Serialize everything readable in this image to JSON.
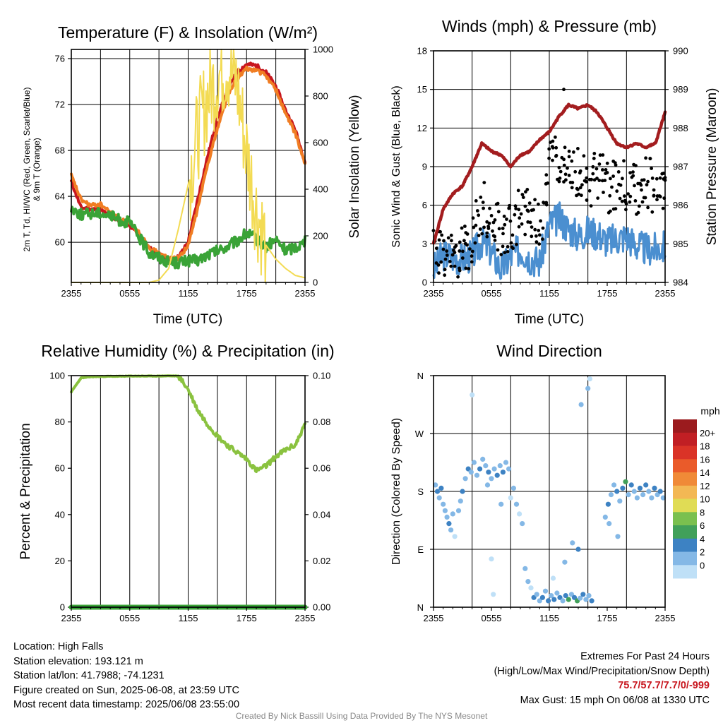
{
  "x_ticks": [
    "2355",
    "0555",
    "1155",
    "1755",
    "2355"
  ],
  "panels": {
    "temperature": {
      "title": "Temperature (F) & Insolation (W/m²)",
      "xlabel": "Time (UTC)",
      "ylabel_line1": "2m T, Td, HI/WC (Red, Green, Scarlet/Blue)",
      "ylabel_line2": "& 9m T (Orange)",
      "ylabel_right": "Solar Insolation (Yellow)",
      "left_ticks": [
        "60",
        "64",
        "68",
        "72",
        "76"
      ],
      "right_ticks": [
        "0",
        "200",
        "400",
        "600",
        "800",
        "1000"
      ]
    },
    "winds": {
      "title": "Winds (mph) & Pressure (mb)",
      "xlabel": "Time (UTC)",
      "ylabel_left": "Sonic Wind & Gust (Blue, Black)",
      "ylabel_right": "Station Pressure (Maroon)",
      "left_ticks": [
        "0",
        "3",
        "6",
        "9",
        "12",
        "15",
        "18"
      ],
      "right_ticks": [
        "984",
        "985",
        "986",
        "987",
        "988",
        "989",
        "990"
      ]
    },
    "humidity": {
      "title": "Relative Humidity (%) & Precipitation (in)",
      "ylabel_left": "Percent & Precipitation",
      "left_ticks": [
        "0",
        "20",
        "40",
        "60",
        "80",
        "100"
      ],
      "right_ticks": [
        "0.00",
        "0.02",
        "0.04",
        "0.06",
        "0.08",
        "0.10"
      ]
    },
    "direction": {
      "title": "Wind Direction",
      "ylabel_left": "Direction (Colored By Speed)",
      "dir_ticks": [
        "N",
        "E",
        "S",
        "W",
        "N"
      ],
      "legend_title": "mph",
      "legend_labels": [
        "20+",
        "18",
        "16",
        "14",
        "12",
        "10",
        "8",
        "6",
        "4",
        "2",
        "0"
      ],
      "legend_colors": [
        "#9b1b1e",
        "#c11f24",
        "#da3327",
        "#ea5b2a",
        "#f08a37",
        "#f3b854",
        "#e0dc55",
        "#7ac04f",
        "#41a05a",
        "#3d82c3",
        "#84b8e6",
        "#bfe0f7"
      ]
    }
  },
  "chart_data": [
    {
      "type": "line",
      "title": "Temperature (F) & Insolation (W/m²)",
      "xlabel": "Time (UTC)",
      "x_hours": [
        0,
        1,
        2,
        3,
        4,
        5,
        6,
        7,
        8,
        9,
        10,
        11,
        12,
        13,
        14,
        15,
        16,
        17,
        18,
        19,
        20,
        21,
        22,
        23,
        24
      ],
      "ylim": [
        56.5,
        76.8
      ],
      "y2lim": [
        0,
        1000
      ],
      "series": [
        {
          "name": "2m T",
          "color": "#c8161e",
          "axis": "left",
          "values": [
            65.3,
            63.0,
            62.9,
            62.8,
            62.3,
            61.8,
            61.5,
            60.6,
            59.5,
            58.9,
            58.5,
            58.7,
            60.0,
            63.8,
            67.5,
            70.8,
            73.2,
            74.8,
            75.5,
            75.4,
            74.8,
            73.6,
            71.5,
            69.8,
            67.0
          ]
        },
        {
          "name": "9m T",
          "color": "#f07d23",
          "axis": "left",
          "values": [
            65.8,
            63.7,
            63.2,
            63.3,
            62.6,
            62.0,
            61.6,
            60.8,
            59.6,
            59.0,
            58.6,
            58.6,
            59.7,
            63.0,
            66.8,
            69.9,
            72.6,
            74.3,
            75.1,
            75.0,
            74.5,
            73.3,
            71.2,
            69.5,
            66.8
          ]
        },
        {
          "name": "Td",
          "color": "#3aa337",
          "axis": "left",
          "values": [
            63.0,
            62.4,
            62.5,
            62.6,
            62.3,
            61.9,
            61.7,
            60.4,
            59.1,
            58.7,
            58.3,
            58.2,
            58.4,
            58.4,
            58.9,
            59.2,
            59.6,
            60.1,
            60.8,
            60.3,
            59.6,
            60.2,
            59.3,
            59.6,
            60.0
          ]
        },
        {
          "name": "Solar Insolation",
          "color": "#f3db53",
          "axis": "right",
          "values": [
            0,
            0,
            0,
            0,
            0,
            0,
            0,
            0,
            0,
            10,
            60,
            230,
            420,
            640,
            800,
            880,
            940,
            850,
            560,
            310,
            160,
            100,
            60,
            30,
            20
          ]
        }
      ]
    },
    {
      "type": "line",
      "title": "Winds (mph) & Pressure (mb)",
      "xlabel": "Time (UTC)",
      "x_hours": [
        0,
        1,
        2,
        3,
        4,
        5,
        6,
        7,
        8,
        9,
        10,
        11,
        12,
        13,
        14,
        15,
        16,
        17,
        18,
        19,
        20,
        21,
        22,
        23,
        24
      ],
      "ylim": [
        0,
        18
      ],
      "y2lim": [
        984,
        990
      ],
      "series": [
        {
          "name": "Sonic Wind",
          "color": "#4b8fd0",
          "axis": "left",
          "values": [
            1.0,
            2.2,
            2.0,
            1.8,
            2.1,
            3.2,
            2.4,
            1.0,
            2.0,
            2.6,
            1.9,
            1.6,
            4.5,
            5.0,
            4.2,
            3.6,
            4.0,
            3.8,
            3.2,
            3.4,
            3.6,
            2.9,
            2.6,
            2.6,
            2.8
          ]
        },
        {
          "name": "Gust",
          "color": "#000000",
          "axis": "left",
          "values": [
            2.8,
            2.6,
            2.4,
            2.6,
            3.4,
            6.2,
            4.5,
            3.6,
            4.2,
            5.7,
            4.7,
            3.8,
            9.0,
            9.5,
            8.5,
            8.3,
            7.6,
            8.2,
            7.4,
            7.8,
            7.2,
            7.4,
            7.8,
            7.1,
            7.0
          ]
        },
        {
          "name": "Station Pressure",
          "color": "#a31d1f",
          "axis": "right",
          "values": [
            985.0,
            985.9,
            986.3,
            986.5,
            987.0,
            987.6,
            987.4,
            987.3,
            987.0,
            987.3,
            987.4,
            987.7,
            987.9,
            988.3,
            988.6,
            988.5,
            988.6,
            988.4,
            988.0,
            987.6,
            987.5,
            987.6,
            987.5,
            987.6,
            988.4
          ]
        }
      ]
    },
    {
      "type": "line",
      "title": "Relative Humidity (%) & Precipitation (in)",
      "x_hours": [
        0,
        1,
        2,
        3,
        4,
        5,
        6,
        7,
        8,
        9,
        10,
        11,
        12,
        13,
        14,
        15,
        16,
        17,
        18,
        19,
        20,
        21,
        22,
        23,
        24
      ],
      "ylim": [
        0,
        100
      ],
      "y2lim": [
        0,
        0.1
      ],
      "series": [
        {
          "name": "Relative Humidity",
          "color": "#8ac23f",
          "axis": "left",
          "values": [
            93,
            99,
            99.5,
            99.6,
            99.7,
            99.7,
            99.8,
            99.8,
            99.8,
            99.8,
            99.9,
            99.8,
            94,
            85,
            79,
            74,
            70,
            67,
            64,
            59,
            61,
            65,
            68,
            70,
            79
          ]
        },
        {
          "name": "Precipitation",
          "color": "#1a6f34",
          "axis": "right",
          "values": [
            0,
            0,
            0,
            0,
            0,
            0,
            0,
            0,
            0,
            0,
            0,
            0,
            0,
            0,
            0,
            0,
            0,
            0,
            0,
            0,
            0,
            0,
            0,
            0,
            0
          ]
        }
      ]
    },
    {
      "type": "scatter",
      "title": "Wind Direction",
      "ylabel": "Direction (Colored By Speed)",
      "ylim": [
        0,
        360
      ],
      "points": [
        [
          0.2,
          190,
          3
        ],
        [
          0.4,
          180,
          4
        ],
        [
          0.6,
          170,
          2
        ],
        [
          0.8,
          185,
          4
        ],
        [
          1.0,
          160,
          3
        ],
        [
          1.2,
          150,
          2
        ],
        [
          1.4,
          140,
          3
        ],
        [
          1.6,
          130,
          4
        ],
        [
          1.8,
          120,
          3
        ],
        [
          2.0,
          145,
          2
        ],
        [
          2.2,
          110,
          1
        ],
        [
          2.6,
          150,
          3
        ],
        [
          2.8,
          165,
          2
        ],
        [
          3.0,
          180,
          4
        ],
        [
          3.3,
          200,
          3
        ],
        [
          3.6,
          215,
          4
        ],
        [
          3.9,
          210,
          3
        ],
        [
          4.2,
          225,
          2
        ],
        [
          4.5,
          205,
          3
        ],
        [
          4.8,
          215,
          4
        ],
        [
          5.1,
          230,
          3
        ],
        [
          5.4,
          220,
          2
        ],
        [
          5.7,
          210,
          4
        ],
        [
          6.0,
          200,
          3
        ],
        [
          6.3,
          215,
          2
        ],
        [
          6.6,
          205,
          4
        ],
        [
          6.9,
          220,
          3
        ],
        [
          7.2,
          210,
          4
        ],
        [
          7.5,
          225,
          2
        ],
        [
          7.8,
          215,
          3
        ],
        [
          4.0,
          330,
          1
        ],
        [
          5.6,
          190,
          2
        ],
        [
          6.0,
          75,
          1
        ],
        [
          6.2,
          20,
          1
        ],
        [
          7.0,
          160,
          2
        ],
        [
          8.0,
          170,
          1
        ],
        [
          8.3,
          185,
          3
        ],
        [
          8.6,
          160,
          2
        ],
        [
          8.9,
          145,
          1
        ],
        [
          9.2,
          130,
          2
        ],
        [
          9.5,
          60,
          2
        ],
        [
          9.8,
          40,
          3
        ],
        [
          10.1,
          30,
          1
        ],
        [
          10.4,
          15,
          4
        ],
        [
          10.7,
          20,
          3
        ],
        [
          11.0,
          10,
          2
        ],
        [
          11.3,
          15,
          4
        ],
        [
          11.6,
          25,
          3
        ],
        [
          11.9,
          10,
          5
        ],
        [
          12.2,
          18,
          3
        ],
        [
          12.5,
          12,
          4
        ],
        [
          12.8,
          22,
          2
        ],
        [
          13.1,
          15,
          5
        ],
        [
          13.4,
          10,
          3
        ],
        [
          13.7,
          18,
          4
        ],
        [
          14.0,
          12,
          6
        ],
        [
          14.3,
          20,
          3
        ],
        [
          14.6,
          15,
          4
        ],
        [
          14.9,
          10,
          6
        ],
        [
          15.2,
          14,
          3
        ],
        [
          15.5,
          20,
          4
        ],
        [
          15.8,
          12,
          3
        ],
        [
          16.1,
          18,
          2
        ],
        [
          16.4,
          10,
          4
        ],
        [
          12.4,
          45,
          1
        ],
        [
          13.6,
          70,
          2
        ],
        [
          14.4,
          100,
          3
        ],
        [
          15.0,
          90,
          4
        ],
        [
          15.3,
          315,
          3
        ],
        [
          16.2,
          355,
          1
        ],
        [
          16.0,
          340,
          2
        ],
        [
          17.8,
          140,
          3
        ],
        [
          18.1,
          160,
          4
        ],
        [
          18.4,
          175,
          3
        ],
        [
          18.7,
          190,
          2
        ],
        [
          19.0,
          180,
          4
        ],
        [
          19.3,
          165,
          3
        ],
        [
          19.6,
          185,
          4
        ],
        [
          19.9,
          195,
          6
        ],
        [
          20.2,
          175,
          3
        ],
        [
          20.5,
          190,
          4
        ],
        [
          20.8,
          180,
          3
        ],
        [
          21.1,
          170,
          2
        ],
        [
          21.4,
          185,
          4
        ],
        [
          21.7,
          175,
          3
        ],
        [
          22.0,
          190,
          4
        ],
        [
          22.3,
          180,
          3
        ],
        [
          22.6,
          170,
          2
        ],
        [
          22.9,
          185,
          4
        ],
        [
          23.2,
          175,
          3
        ],
        [
          23.5,
          180,
          4
        ],
        [
          23.8,
          170,
          3
        ],
        [
          18.2,
          130,
          2
        ],
        [
          19.1,
          110,
          3
        ]
      ]
    }
  ],
  "info": {
    "location": "Location: High Falls",
    "elevation": "Station elevation: 193.121 m",
    "latlon": "Station lat/lon: 41.7988; -74.1231",
    "created": "Figure created on Sun, 2025-06-08, at 23:59 UTC",
    "recent": "Most recent data timestamp: 2025/06/08 23:55:00"
  },
  "extremes": {
    "heading": "Extremes For Past 24 Hours",
    "subheading": "(High/Low/Max Wind/Precipitation/Snow Depth)",
    "values": "75.7/57.7/7.7/0/-999",
    "gust": "Max Gust: 15 mph On 06/08 at 1330 UTC"
  },
  "credit": "Created By Nick Bassill Using Data Provided By The NYS Mesonet"
}
